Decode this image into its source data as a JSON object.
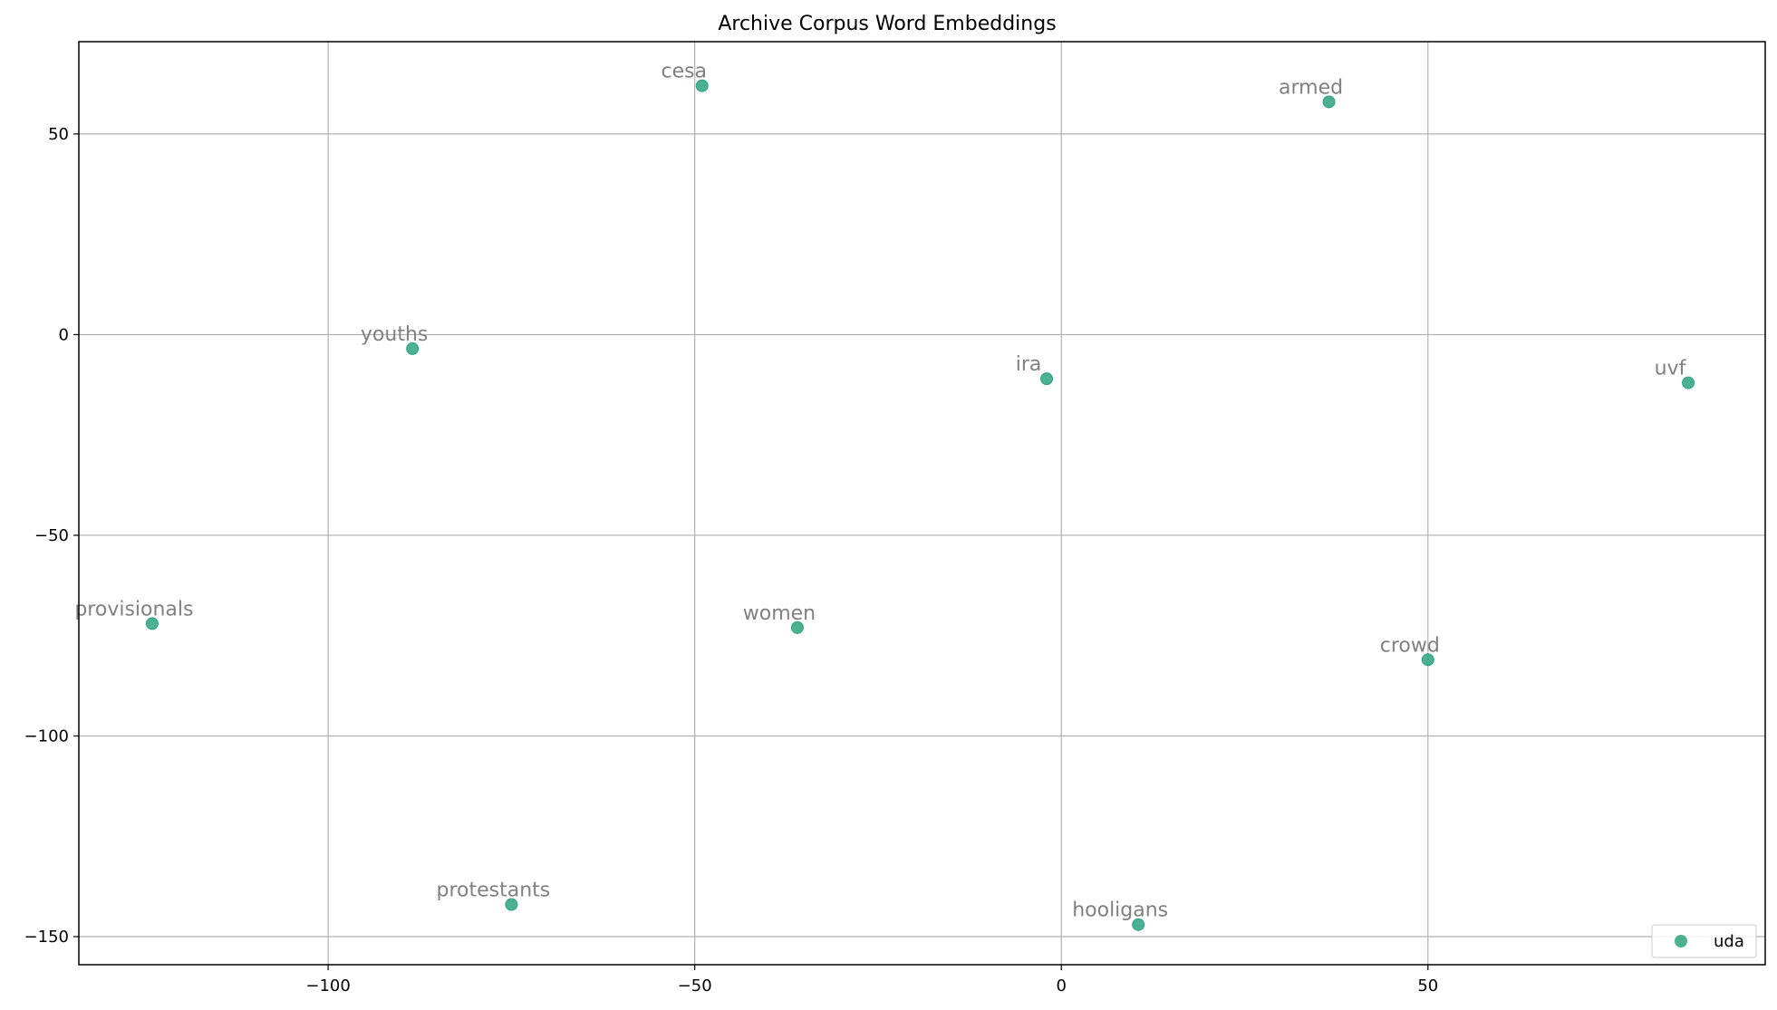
{
  "chart_data": {
    "type": "scatter",
    "title": "Archive Corpus Word Embeddings",
    "xlabel": "",
    "ylabel": "",
    "xlim": [
      -134,
      96
    ],
    "ylim": [
      -157,
      73
    ],
    "x_ticks": [
      -100,
      -50,
      0,
      50
    ],
    "y_ticks": [
      50,
      0,
      -50,
      -100,
      -150
    ],
    "x_tick_labels": [
      "−100",
      "−50",
      "0",
      "50"
    ],
    "y_tick_labels": [
      "50",
      "0",
      "−50",
      "−100",
      "−150"
    ],
    "grid": true,
    "legend_placement": "lower-right",
    "series": [
      {
        "name": "uda",
        "color": "#2ca37f",
        "points": [
          {
            "label": "cesa",
            "x": -49,
            "y": 62
          },
          {
            "label": "armed",
            "x": 36.5,
            "y": 58
          },
          {
            "label": "youths",
            "x": -88.5,
            "y": -3.5
          },
          {
            "label": "ira",
            "x": -2,
            "y": -11
          },
          {
            "label": "uvf",
            "x": 85.5,
            "y": -12
          },
          {
            "label": "provisionals",
            "x": -124,
            "y": -72
          },
          {
            "label": "women",
            "x": -36,
            "y": -73
          },
          {
            "label": "crowd",
            "x": 50,
            "y": -81
          },
          {
            "label": "protestants",
            "x": -75,
            "y": -142
          },
          {
            "label": "hooligans",
            "x": 10.5,
            "y": -147
          }
        ]
      }
    ]
  }
}
